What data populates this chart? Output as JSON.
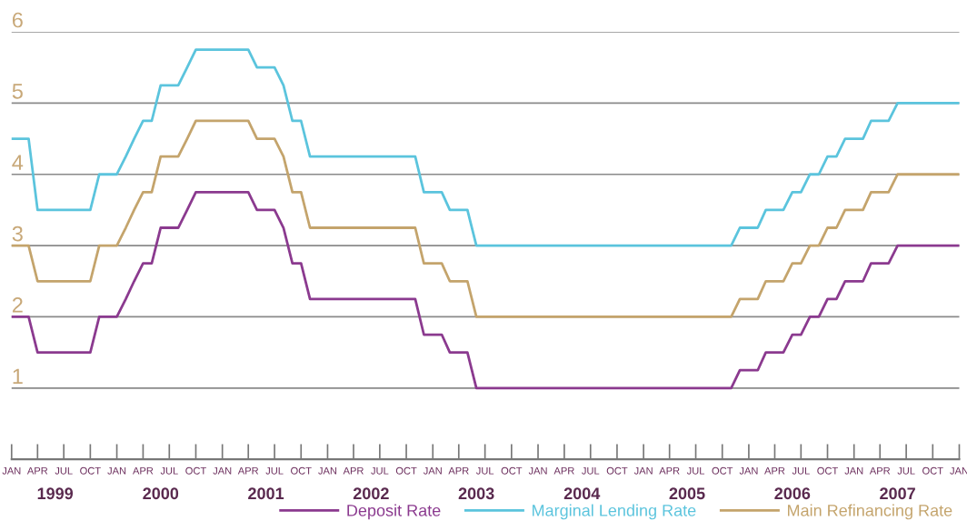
{
  "chart_data": {
    "type": "line",
    "x": [
      "1999-01",
      "1999-02",
      "1999-03",
      "1999-04",
      "1999-05",
      "1999-06",
      "1999-07",
      "1999-08",
      "1999-09",
      "1999-10",
      "1999-11",
      "1999-12",
      "2000-01",
      "2000-02",
      "2000-03",
      "2000-04",
      "2000-05",
      "2000-06",
      "2000-07",
      "2000-08",
      "2000-09",
      "2000-10",
      "2000-11",
      "2000-12",
      "2001-01",
      "2001-02",
      "2001-03",
      "2001-04",
      "2001-05",
      "2001-06",
      "2001-07",
      "2001-08",
      "2001-09",
      "2001-10",
      "2001-11",
      "2001-12",
      "2002-01",
      "2002-02",
      "2002-03",
      "2002-04",
      "2002-05",
      "2002-06",
      "2002-07",
      "2002-08",
      "2002-09",
      "2002-10",
      "2002-11",
      "2002-12",
      "2003-01",
      "2003-02",
      "2003-03",
      "2003-04",
      "2003-05",
      "2003-06",
      "2003-07",
      "2003-08",
      "2003-09",
      "2003-10",
      "2003-11",
      "2003-12",
      "2004-01",
      "2004-02",
      "2004-03",
      "2004-04",
      "2004-05",
      "2004-06",
      "2004-07",
      "2004-08",
      "2004-09",
      "2004-10",
      "2004-11",
      "2004-12",
      "2005-01",
      "2005-02",
      "2005-03",
      "2005-04",
      "2005-05",
      "2005-06",
      "2005-07",
      "2005-08",
      "2005-09",
      "2005-10",
      "2005-11",
      "2005-12",
      "2006-01",
      "2006-02",
      "2006-03",
      "2006-04",
      "2006-05",
      "2006-06",
      "2006-07",
      "2006-08",
      "2006-09",
      "2006-10",
      "2006-11",
      "2006-12",
      "2007-01",
      "2007-02",
      "2007-03",
      "2007-04",
      "2007-05",
      "2007-06",
      "2007-07",
      "2007-08",
      "2007-09",
      "2007-10",
      "2007-11",
      "2007-12",
      "2008-01"
    ],
    "series": [
      {
        "name": "Deposit Rate",
        "color": "#8b3a8f",
        "values": [
          2,
          2,
          2,
          1.5,
          1.5,
          1.5,
          1.5,
          1.5,
          1.5,
          1.5,
          2,
          2,
          2,
          2.25,
          2.5,
          2.75,
          2.75,
          3.25,
          3.25,
          3.25,
          3.5,
          3.75,
          3.75,
          3.75,
          3.75,
          3.75,
          3.75,
          3.75,
          3.5,
          3.5,
          3.5,
          3.25,
          2.75,
          2.75,
          2.25,
          2.25,
          2.25,
          2.25,
          2.25,
          2.25,
          2.25,
          2.25,
          2.25,
          2.25,
          2.25,
          2.25,
          2.25,
          1.75,
          1.75,
          1.75,
          1.5,
          1.5,
          1.5,
          1,
          1,
          1,
          1,
          1,
          1,
          1,
          1,
          1,
          1,
          1,
          1,
          1,
          1,
          1,
          1,
          1,
          1,
          1,
          1,
          1,
          1,
          1,
          1,
          1,
          1,
          1,
          1,
          1,
          1,
          1.25,
          1.25,
          1.25,
          1.5,
          1.5,
          1.5,
          1.75,
          1.75,
          2,
          2,
          2.25,
          2.25,
          2.5,
          2.5,
          2.5,
          2.75,
          2.75,
          2.75,
          3,
          3,
          3,
          3,
          3,
          3,
          3,
          3
        ]
      },
      {
        "name": "Marginal Lending Rate",
        "color": "#5bc4dd",
        "values": [
          4.5,
          4.5,
          4.5,
          3.5,
          3.5,
          3.5,
          3.5,
          3.5,
          3.5,
          3.5,
          4,
          4,
          4,
          4.25,
          4.5,
          4.75,
          4.75,
          5.25,
          5.25,
          5.25,
          5.5,
          5.75,
          5.75,
          5.75,
          5.75,
          5.75,
          5.75,
          5.75,
          5.5,
          5.5,
          5.5,
          5.25,
          4.75,
          4.75,
          4.25,
          4.25,
          4.25,
          4.25,
          4.25,
          4.25,
          4.25,
          4.25,
          4.25,
          4.25,
          4.25,
          4.25,
          4.25,
          3.75,
          3.75,
          3.75,
          3.5,
          3.5,
          3.5,
          3,
          3,
          3,
          3,
          3,
          3,
          3,
          3,
          3,
          3,
          3,
          3,
          3,
          3,
          3,
          3,
          3,
          3,
          3,
          3,
          3,
          3,
          3,
          3,
          3,
          3,
          3,
          3,
          3,
          3,
          3.25,
          3.25,
          3.25,
          3.5,
          3.5,
          3.5,
          3.75,
          3.75,
          4,
          4,
          4.25,
          4.25,
          4.5,
          4.5,
          4.5,
          4.75,
          4.75,
          4.75,
          5,
          5,
          5,
          5,
          5,
          5,
          5,
          5
        ]
      },
      {
        "name": "Main Refinancing Rate",
        "color": "#c4a46c",
        "values": [
          3,
          3,
          3,
          2.5,
          2.5,
          2.5,
          2.5,
          2.5,
          2.5,
          2.5,
          3,
          3,
          3,
          3.25,
          3.5,
          3.75,
          3.75,
          4.25,
          4.25,
          4.25,
          4.5,
          4.75,
          4.75,
          4.75,
          4.75,
          4.75,
          4.75,
          4.75,
          4.5,
          4.5,
          4.5,
          4.25,
          3.75,
          3.75,
          3.25,
          3.25,
          3.25,
          3.25,
          3.25,
          3.25,
          3.25,
          3.25,
          3.25,
          3.25,
          3.25,
          3.25,
          3.25,
          2.75,
          2.75,
          2.75,
          2.5,
          2.5,
          2.5,
          2,
          2,
          2,
          2,
          2,
          2,
          2,
          2,
          2,
          2,
          2,
          2,
          2,
          2,
          2,
          2,
          2,
          2,
          2,
          2,
          2,
          2,
          2,
          2,
          2,
          2,
          2,
          2,
          2,
          2,
          2.25,
          2.25,
          2.25,
          2.5,
          2.5,
          2.5,
          2.75,
          2.75,
          3,
          3,
          3.25,
          3.25,
          3.5,
          3.5,
          3.5,
          3.75,
          3.75,
          3.75,
          4,
          4,
          4,
          4,
          4,
          4,
          4,
          4
        ]
      }
    ],
    "xlim": [
      "1999-01",
      "2008-01"
    ],
    "xticks": [
      {
        "value": "1999-01",
        "label": "JAN"
      },
      {
        "value": "1999-04",
        "label": "APR"
      },
      {
        "value": "1999-07",
        "label": "JUL"
      },
      {
        "value": "1999-10",
        "label": "OCT"
      },
      {
        "value": "2000-01",
        "label": "JAN"
      },
      {
        "value": "2000-04",
        "label": "APR"
      },
      {
        "value": "2000-07",
        "label": "JUL"
      },
      {
        "value": "2000-10",
        "label": "OCT"
      },
      {
        "value": "2001-01",
        "label": "JAN"
      },
      {
        "value": "2001-04",
        "label": "APR"
      },
      {
        "value": "2001-07",
        "label": "JUL"
      },
      {
        "value": "2001-10",
        "label": "OCT"
      },
      {
        "value": "2002-01",
        "label": "JAN"
      },
      {
        "value": "2002-04",
        "label": "APR"
      },
      {
        "value": "2002-07",
        "label": "JUL"
      },
      {
        "value": "2002-10",
        "label": "OCT"
      },
      {
        "value": "2003-01",
        "label": "JAN"
      },
      {
        "value": "2003-04",
        "label": "APR"
      },
      {
        "value": "2003-07",
        "label": "JUL"
      },
      {
        "value": "2003-10",
        "label": "OCT"
      },
      {
        "value": "2004-01",
        "label": "JAN"
      },
      {
        "value": "2004-04",
        "label": "APR"
      },
      {
        "value": "2004-07",
        "label": "JUL"
      },
      {
        "value": "2004-10",
        "label": "OCT"
      },
      {
        "value": "2005-01",
        "label": "JAN"
      },
      {
        "value": "2005-04",
        "label": "APR"
      },
      {
        "value": "2005-07",
        "label": "JUL"
      },
      {
        "value": "2005-10",
        "label": "OCT"
      },
      {
        "value": "2006-01",
        "label": "JAN"
      },
      {
        "value": "2006-04",
        "label": "APR"
      },
      {
        "value": "2006-07",
        "label": "JUL"
      },
      {
        "value": "2006-10",
        "label": "OCT"
      },
      {
        "value": "2007-01",
        "label": "JAN"
      },
      {
        "value": "2007-04",
        "label": "APR"
      },
      {
        "value": "2007-07",
        "label": "JUL"
      },
      {
        "value": "2007-10",
        "label": "OCT"
      },
      {
        "value": "2008-01",
        "label": "JAN"
      }
    ],
    "x2ticks": [
      {
        "value": "1999-06",
        "label": "1999"
      },
      {
        "value": "2000-06",
        "label": "2000"
      },
      {
        "value": "2001-06",
        "label": "2001"
      },
      {
        "value": "2002-06",
        "label": "2002"
      },
      {
        "value": "2003-06",
        "label": "2003"
      },
      {
        "value": "2004-06",
        "label": "2004"
      },
      {
        "value": "2005-06",
        "label": "2005"
      },
      {
        "value": "2006-06",
        "label": "2006"
      },
      {
        "value": "2007-06",
        "label": "2007"
      }
    ],
    "x2lim": [
      "1999-01",
      "2008-01"
    ],
    "ylim": [
      0,
      6
    ],
    "yticks": [
      1,
      2,
      3,
      4,
      5,
      6
    ],
    "grid": "y",
    "legend": "bottom",
    "marker": "none",
    "line_style": "solid"
  }
}
